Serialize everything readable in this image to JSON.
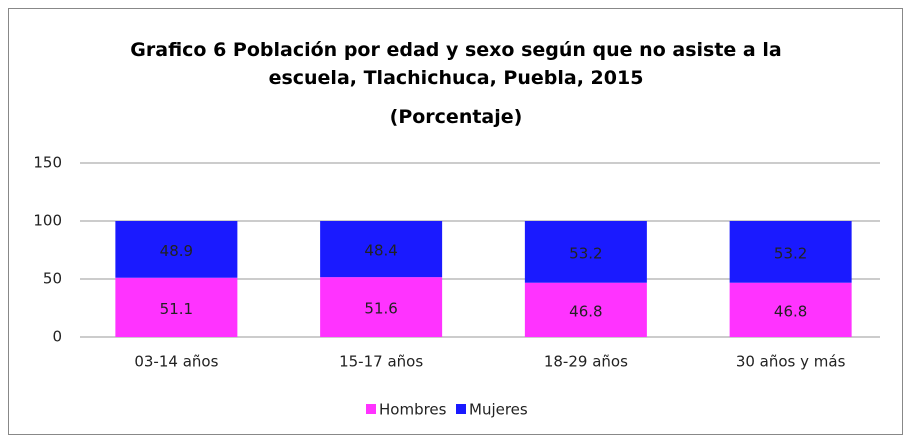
{
  "chart_data": {
    "type": "stacked_bar",
    "title": "Grafico 6 Población por edad y sexo según que no asiste a la escuela, Tlachichuca, Puebla, 2015",
    "subtitle": "(Porcentaje)",
    "categories": [
      "03-14 años",
      "15-17 años",
      "18-29 años",
      "30 años y más"
    ],
    "series": [
      {
        "name": "Hombres",
        "color": "#ff33ff",
        "values": [
          51.1,
          51.6,
          46.8,
          46.8
        ]
      },
      {
        "name": "Mujeres",
        "color": "#1a1aff",
        "values": [
          48.9,
          48.4,
          53.2,
          53.2
        ]
      }
    ],
    "ylim": [
      0,
      150
    ],
    "yticks": [
      0,
      50,
      100,
      150
    ],
    "grid": true,
    "legend": "bottom"
  }
}
